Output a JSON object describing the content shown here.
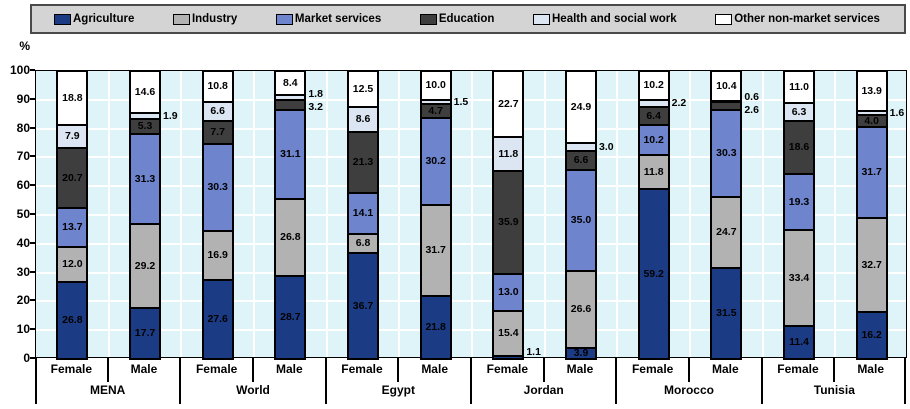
{
  "y_axis": {
    "unit": "%",
    "ticks": [
      100,
      90,
      80,
      70,
      60,
      50,
      40,
      30,
      20,
      10,
      0
    ]
  },
  "x_axis": {
    "sex_labels": [
      "Female",
      "Male"
    ]
  },
  "colors": {
    "plot_background": "#def4f8",
    "gridline": "#ffffff",
    "legend_background": "#d4d4d4",
    "bar_border": "#000000"
  },
  "chart_data": {
    "type": "bar",
    "stacked": true,
    "title": "",
    "xlabel": "",
    "ylabel": "%",
    "ylim": [
      0,
      100
    ],
    "grid": true,
    "legend_position": "top",
    "series": [
      {
        "name": "Agriculture",
        "color": "#1b3c85"
      },
      {
        "name": "Industry",
        "color": "#b2b2b2"
      },
      {
        "name": "Market services",
        "color": "#6e84cd"
      },
      {
        "name": "Education",
        "color": "#3e3e3e"
      },
      {
        "name": "Health and social work",
        "color": "#dce6f2"
      },
      {
        "name": "Other non-market services",
        "color": "#ffffff"
      }
    ],
    "groups": [
      {
        "country": "MENA",
        "bars": [
          {
            "sex": "Female",
            "values": [
              26.8,
              12.0,
              13.7,
              20.7,
              7.9,
              18.8
            ],
            "outside": []
          },
          {
            "sex": "Male",
            "values": [
              17.7,
              29.2,
              31.3,
              5.3,
              1.9,
              14.6
            ],
            "outside": [
              4
            ]
          }
        ]
      },
      {
        "country": "World",
        "bars": [
          {
            "sex": "Female",
            "values": [
              27.6,
              16.9,
              30.3,
              7.7,
              6.6,
              10.8
            ],
            "outside": []
          },
          {
            "sex": "Male",
            "values": [
              28.7,
              26.8,
              31.1,
              3.2,
              1.8,
              8.4
            ],
            "outside": [
              3,
              4
            ]
          }
        ]
      },
      {
        "country": "Egypt",
        "bars": [
          {
            "sex": "Female",
            "values": [
              36.7,
              6.8,
              14.1,
              21.3,
              8.6,
              12.5
            ],
            "outside": []
          },
          {
            "sex": "Male",
            "values": [
              21.8,
              31.7,
              30.2,
              4.7,
              1.5,
              10.0
            ],
            "outside": [
              4
            ]
          }
        ]
      },
      {
        "country": "Jordan",
        "bars": [
          {
            "sex": "Female",
            "values": [
              1.1,
              15.4,
              13.0,
              35.9,
              11.8,
              22.7
            ],
            "outside": [
              0
            ]
          },
          {
            "sex": "Male",
            "values": [
              3.9,
              26.6,
              35.0,
              6.6,
              3.0,
              24.9
            ],
            "outside": [
              4
            ]
          }
        ]
      },
      {
        "country": "Morocco",
        "bars": [
          {
            "sex": "Female",
            "values": [
              59.2,
              11.8,
              10.2,
              6.4,
              2.2,
              10.2
            ],
            "outside": [
              4
            ]
          },
          {
            "sex": "Male",
            "values": [
              31.5,
              24.7,
              30.3,
              2.6,
              0.6,
              10.4
            ],
            "outside": [
              3,
              4
            ]
          }
        ]
      },
      {
        "country": "Tunisia",
        "bars": [
          {
            "sex": "Female",
            "values": [
              11.4,
              33.4,
              19.3,
              18.6,
              6.3,
              11.0
            ],
            "outside": []
          },
          {
            "sex": "Male",
            "values": [
              16.2,
              32.7,
              31.7,
              4.0,
              1.6,
              13.9
            ],
            "outside": [
              4
            ]
          }
        ]
      }
    ]
  }
}
